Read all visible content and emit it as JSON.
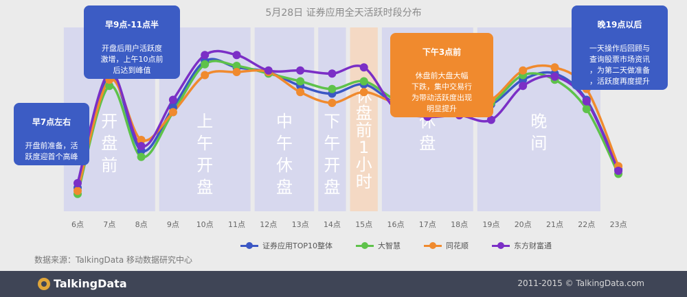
{
  "title": "5月28日 证券应用全天活跃时段分布",
  "chart_data": {
    "type": "line",
    "title": "5月28日 证券应用全天活跃时段分布",
    "categories": [
      "6点",
      "7点",
      "8点",
      "9点",
      "10点",
      "11点",
      "12点",
      "13点",
      "14点",
      "15点",
      "16点",
      "17点",
      "18点",
      "19点",
      "20点",
      "21点",
      "22点",
      "23点"
    ],
    "x_label": "",
    "y_label": "",
    "grid": false,
    "legend_position": "bottom",
    "series": [
      {
        "name": "证券应用TOP10整体",
        "color": "#3b57c4",
        "values": [
          0.05,
          0.78,
          0.29,
          0.57,
          0.87,
          0.83,
          0.8,
          0.71,
          0.66,
          0.72,
          0.6,
          0.59,
          0.58,
          0.59,
          0.75,
          0.79,
          0.62,
          0.17
        ]
      },
      {
        "name": "大智慧",
        "color": "#5ec24a",
        "values": [
          0.01,
          0.71,
          0.25,
          0.54,
          0.85,
          0.84,
          0.79,
          0.74,
          0.69,
          0.74,
          0.62,
          0.58,
          0.57,
          0.6,
          0.78,
          0.75,
          0.56,
          0.14
        ]
      },
      {
        "name": "同花顺",
        "color": "#f08a2e",
        "values": [
          0.03,
          0.75,
          0.36,
          0.54,
          0.78,
          0.8,
          0.8,
          0.67,
          0.6,
          0.67,
          0.6,
          0.58,
          0.59,
          0.62,
          0.81,
          0.83,
          0.69,
          0.19
        ]
      },
      {
        "name": "东方财富通",
        "color": "#7b2fc6",
        "values": [
          0.08,
          0.8,
          0.32,
          0.62,
          0.91,
          0.91,
          0.81,
          0.81,
          0.79,
          0.83,
          0.56,
          0.51,
          0.52,
          0.49,
          0.71,
          0.77,
          0.61,
          0.16
        ]
      }
    ],
    "bands": [
      {
        "label": "开盘前",
        "from": 0,
        "to": 2,
        "highlight": false
      },
      {
        "label": "上午开盘",
        "from": 3,
        "to": 5,
        "highlight": false
      },
      {
        "label": "中午休盘",
        "from": 6,
        "to": 7,
        "highlight": false
      },
      {
        "label": "下午开盘",
        "from": 8,
        "to": 8,
        "highlight": false
      },
      {
        "label": "休盘前1小时",
        "from": 9,
        "to": 9,
        "highlight": true
      },
      {
        "label": "休盘",
        "from": 10,
        "to": 12,
        "highlight": false
      },
      {
        "label": "晚间",
        "from": 13,
        "to": 16,
        "highlight": false
      }
    ]
  },
  "callouts": [
    {
      "id": "c1",
      "heading": "早7点左右",
      "body": "开盘前准备，活\n跃度迎首个高峰",
      "color": "blue"
    },
    {
      "id": "c2",
      "heading": "早9点-11点半",
      "body": "开盘后用户活跃度\n激增，上午10点前\n后达到峰值",
      "color": "blue"
    },
    {
      "id": "c3",
      "heading": "下午3点前",
      "body": "休盘前大盘大幅\n下跌，集中交易行\n为带动活跃度出现\n明显提升",
      "color": "orange"
    },
    {
      "id": "c4",
      "heading": "晚19点以后",
      "body": "一天操作后回顾与\n查询股票市场资讯\n，为第二天做准备\n，活跃度再度提升",
      "color": "blue"
    }
  ],
  "source": "数据来源：TalkingData 移动数据研究中心",
  "footer": {
    "logo": "TalkingData",
    "copyright": "2011-2015 © TalkingData.com"
  }
}
